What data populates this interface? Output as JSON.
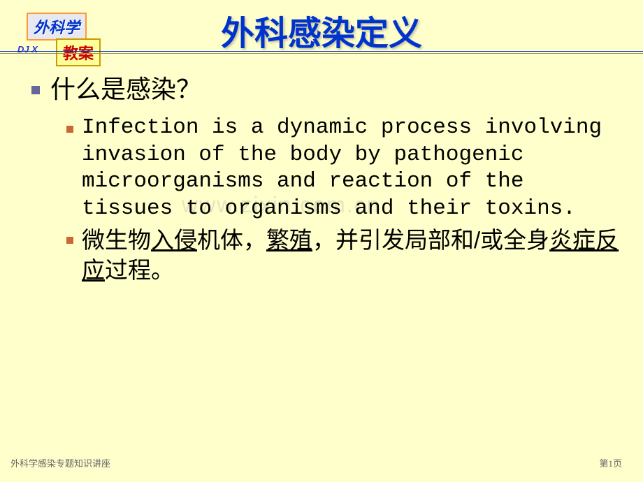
{
  "header": {
    "badge1": "外科学",
    "badge2": "教案",
    "author": "DJ X"
  },
  "title": "外科感染定义",
  "content": {
    "question": "什么是感染？",
    "definition_en": "Infection is a dynamic process involving invasion of the body by pathogenic microorganisms and reaction of the tissues to organisms and their toxins.",
    "definition_cn_part1": "微生物",
    "definition_cn_u1": "入侵",
    "definition_cn_part2": "机体，",
    "definition_cn_u2": "繁殖",
    "definition_cn_part3": "，并引发局部和/或全身",
    "definition_cn_u3": "炎症反应",
    "definition_cn_part4": "过程。"
  },
  "watermark": "www.zixin.com.cn",
  "footer": {
    "left": "外科学感染专题知识讲座",
    "right": "第1页"
  },
  "colors": {
    "background": "#ffffcc",
    "title_color": "#0033cc",
    "main_bullet": "#666699",
    "sub_bullet": "#cc6633",
    "badge1_border": "#ff9933",
    "badge1_text": "#0033cc",
    "badge2_text": "#cc0000"
  }
}
